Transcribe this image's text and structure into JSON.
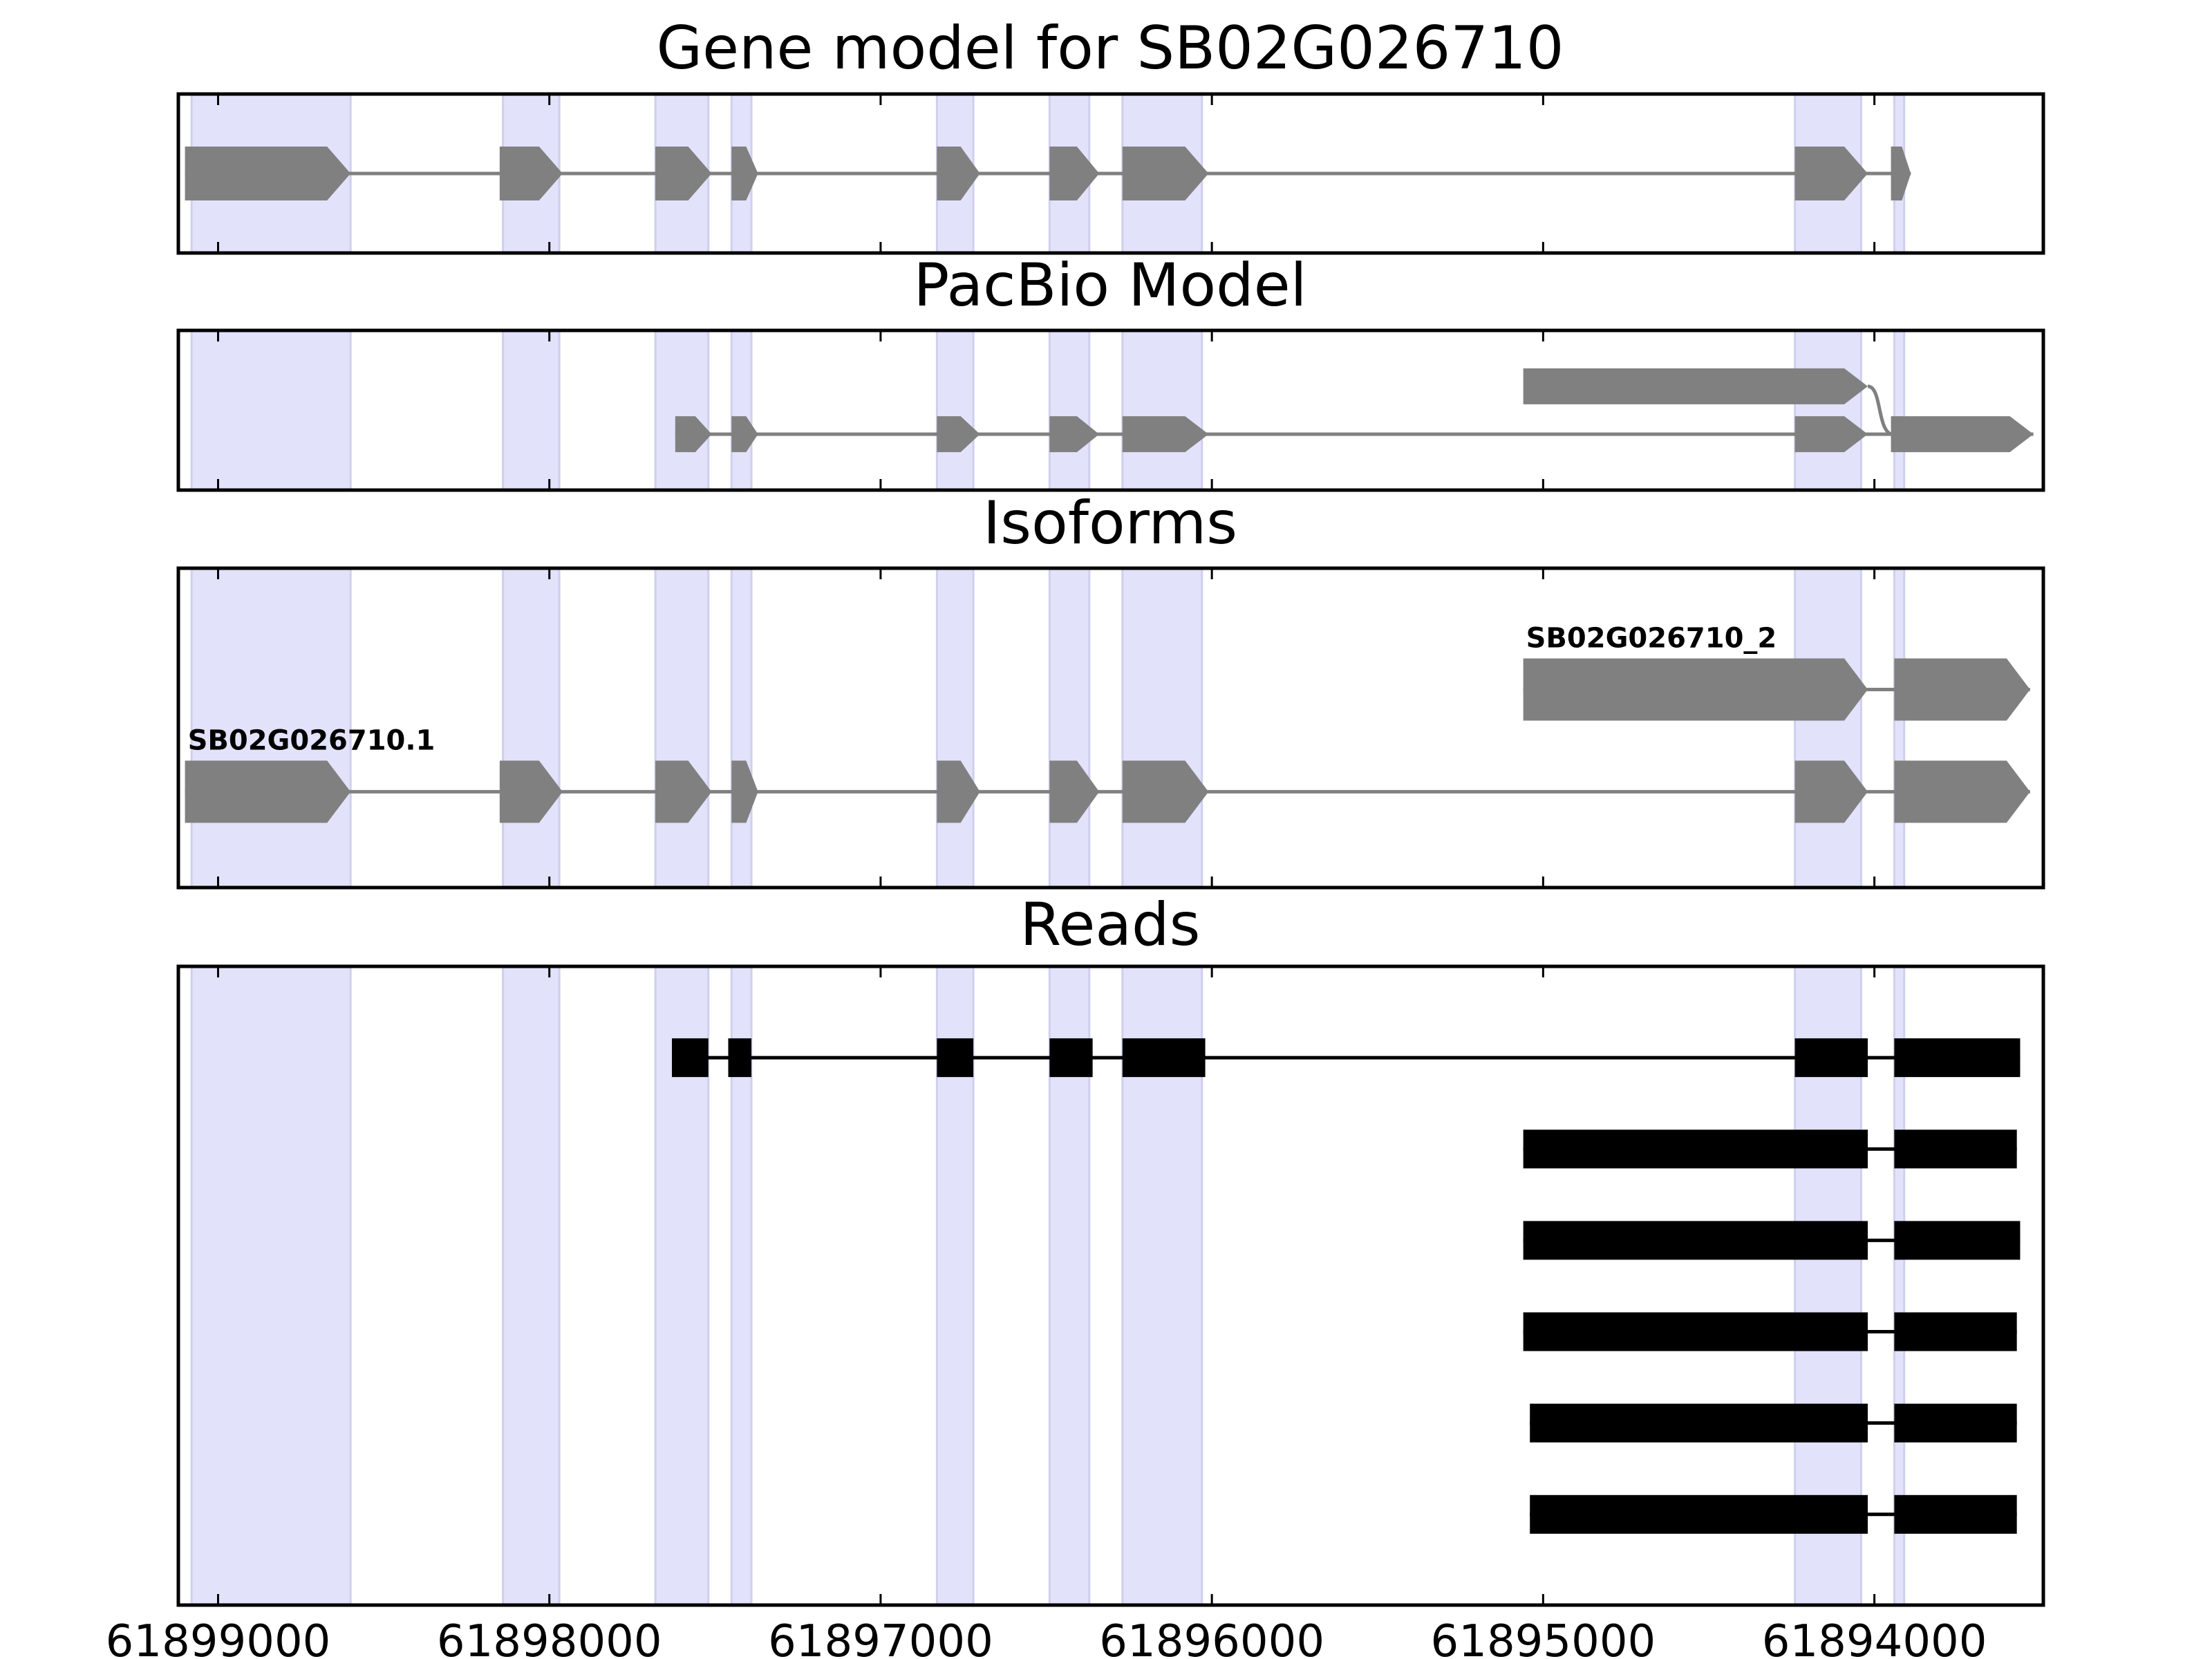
{
  "figure": {
    "titles": [
      "Gene model for SB02G026710",
      "PacBio Model",
      "Isoforms",
      "Reads"
    ]
  },
  "chart_data": {
    "type": "gene-track",
    "xlim": [
      61899120,
      61893490
    ],
    "x_ticks": [
      61899000,
      61898000,
      61897000,
      61896000,
      61895000,
      61894000
    ],
    "x_tick_labels": [
      "61899000",
      "61898000",
      "61897000",
      "61896000",
      "61895000",
      "61894000"
    ],
    "colors": {
      "feature": "#808080",
      "read": "#000000",
      "exon_shade": "#e2e2fb",
      "frame": "#000000"
    },
    "exon_shading": [
      [
        61899080,
        61898600
      ],
      [
        61898140,
        61897970
      ],
      [
        61897680,
        61897520
      ],
      [
        61897450,
        61897390
      ],
      [
        61896830,
        61896720
      ],
      [
        61896490,
        61896370
      ],
      [
        61896270,
        61896030
      ],
      [
        61894240,
        61894040
      ],
      [
        61893940,
        61893910
      ]
    ],
    "panels": [
      {
        "title": "Gene model for SB02G026710",
        "features": [
          {
            "exons": [
              [
                61899100,
                61898600
              ],
              [
                61898150,
                61897960
              ],
              [
                61897680,
                61897510
              ],
              [
                61897450,
                61897370
              ],
              [
                61896830,
                61896700
              ],
              [
                61896490,
                61896340
              ],
              [
                61896270,
                61896010
              ],
              [
                61894240,
                61894020
              ],
              [
                61893950,
                61893890
              ]
            ],
            "row": 0.5
          }
        ]
      },
      {
        "title": "PacBio Model",
        "features": [
          {
            "exons": [
              [
                61895060,
                61894020
              ]
            ],
            "row": 0.35,
            "link_to": [
              61893950,
              0.65
            ]
          },
          {
            "exons": [
              [
                61897620,
                61897510
              ],
              [
                61897450,
                61897370
              ],
              [
                61896830,
                61896700
              ],
              [
                61896490,
                61896340
              ],
              [
                61896270,
                61896010
              ],
              [
                61894240,
                61894020
              ],
              [
                61893950,
                61893520
              ]
            ],
            "row": 0.65
          }
        ]
      },
      {
        "title": "Isoforms",
        "features": [
          {
            "label": "SB02G026710_2",
            "exons": [
              [
                61895060,
                61894020
              ],
              [
                61893940,
                61893530
              ]
            ],
            "row": 0.38
          },
          {
            "label": "SB02G026710.1",
            "exons": [
              [
                61899100,
                61898600
              ],
              [
                61898150,
                61897960
              ],
              [
                61897680,
                61897510
              ],
              [
                61897450,
                61897370
              ],
              [
                61896830,
                61896700
              ],
              [
                61896490,
                61896340
              ],
              [
                61896270,
                61896010
              ],
              [
                61894240,
                61894020
              ],
              [
                61893940,
                61893530
              ]
            ],
            "row": 0.7
          }
        ]
      },
      {
        "title": "Reads",
        "features": [
          {
            "exons": [
              [
                61897630,
                61897520
              ],
              [
                61897460,
                61897390
              ],
              [
                61896830,
                61896720
              ],
              [
                61896490,
                61896360
              ],
              [
                61896270,
                61896020
              ],
              [
                61894240,
                61894020
              ],
              [
                61893940,
                61893560
              ]
            ],
            "row": 0.143
          },
          {
            "exons": [
              [
                61895060,
                61894020
              ],
              [
                61893940,
                61893570
              ]
            ],
            "row": 0.286
          },
          {
            "exons": [
              [
                61895060,
                61894020
              ],
              [
                61893940,
                61893560
              ]
            ],
            "row": 0.429
          },
          {
            "exons": [
              [
                61895060,
                61894020
              ],
              [
                61893940,
                61893570
              ]
            ],
            "row": 0.572
          },
          {
            "exons": [
              [
                61895040,
                61894020
              ],
              [
                61893940,
                61893570
              ]
            ],
            "row": 0.715
          },
          {
            "exons": [
              [
                61895040,
                61894020
              ],
              [
                61893940,
                61893570
              ]
            ],
            "row": 0.858
          }
        ]
      }
    ]
  }
}
